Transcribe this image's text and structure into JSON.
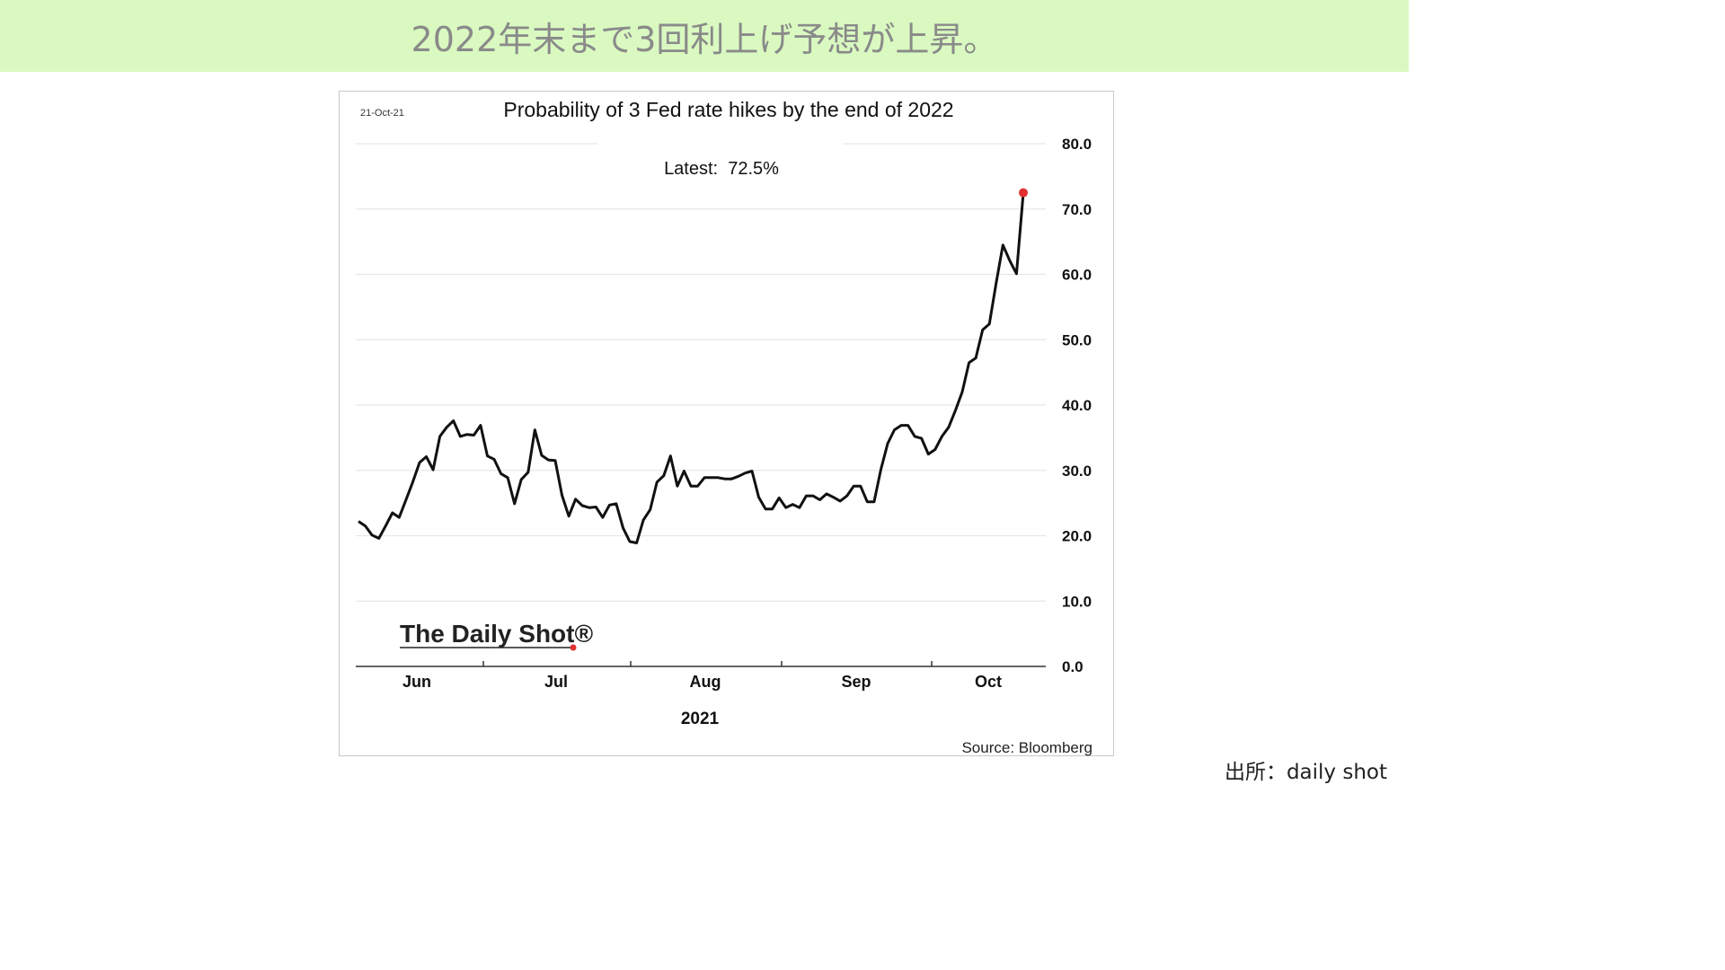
{
  "header": {
    "title": "2022年末まで3回利上げ予想が上昇。"
  },
  "footer": {
    "source_note": "出所：daily shot"
  },
  "chart_data": {
    "type": "line",
    "date_stamp": "21-Oct-21",
    "title": "Probability of 3 Fed rate hikes by the end of 2022",
    "annotation": "Latest:  72.5%",
    "latest_value": 72.5,
    "x_tick_labels": [
      "Jun",
      "Jul",
      "Aug",
      "Sep",
      "Oct"
    ],
    "x_year_label": "2021",
    "y_tick_labels": [
      "80.0",
      "70.0",
      "60.0",
      "50.0",
      "40.0",
      "30.0",
      "20.0",
      "10.0",
      "0.0"
    ],
    "ylim": [
      0,
      80
    ],
    "y_ticks": [
      80,
      70,
      60,
      50,
      40,
      30,
      20,
      10,
      0
    ],
    "grid": true,
    "y_axis_side": "right",
    "logo": "The Daily Shot®",
    "source": "Source: Bloomberg",
    "colors": {
      "line": "#111111",
      "latest_marker": "#e03030",
      "grid": "#e6e6e6"
    },
    "series": [
      {
        "values": [
          22.2,
          21.5,
          20.1,
          19.6,
          21.5,
          23.5,
          22.8,
          25.5,
          28.2,
          31.2,
          32.1,
          30.1,
          35.2,
          36.6,
          37.6,
          35.2,
          35.5,
          35.4,
          36.9,
          32.2,
          31.7,
          29.5,
          28.9,
          24.9,
          28.6,
          29.7,
          36.2,
          32.3,
          31.6,
          31.5,
          26.2,
          23.0,
          25.6,
          24.6,
          24.3,
          24.4,
          22.8,
          24.7,
          24.9,
          21.2,
          19.1,
          18.9,
          22.4,
          24.0,
          28.2,
          29.2,
          32.2,
          27.6,
          29.9,
          27.6,
          27.6,
          28.9,
          28.9,
          28.9,
          28.7,
          28.7,
          29.1,
          29.6,
          29.9,
          25.9,
          24.1,
          24.1,
          25.8,
          24.3,
          24.8,
          24.3,
          26.1,
          26.1,
          25.5,
          26.4,
          25.9,
          25.3,
          26.1,
          27.6,
          27.6,
          25.2,
          25.2,
          30.1,
          34.1,
          36.2,
          36.9,
          36.9,
          35.2,
          34.9,
          32.5,
          33.2,
          35.2,
          36.6,
          39.2,
          42.0,
          46.5,
          47.2,
          51.5,
          52.4,
          58.7,
          64.5,
          62.1,
          60.1,
          72.5
        ]
      }
    ]
  }
}
